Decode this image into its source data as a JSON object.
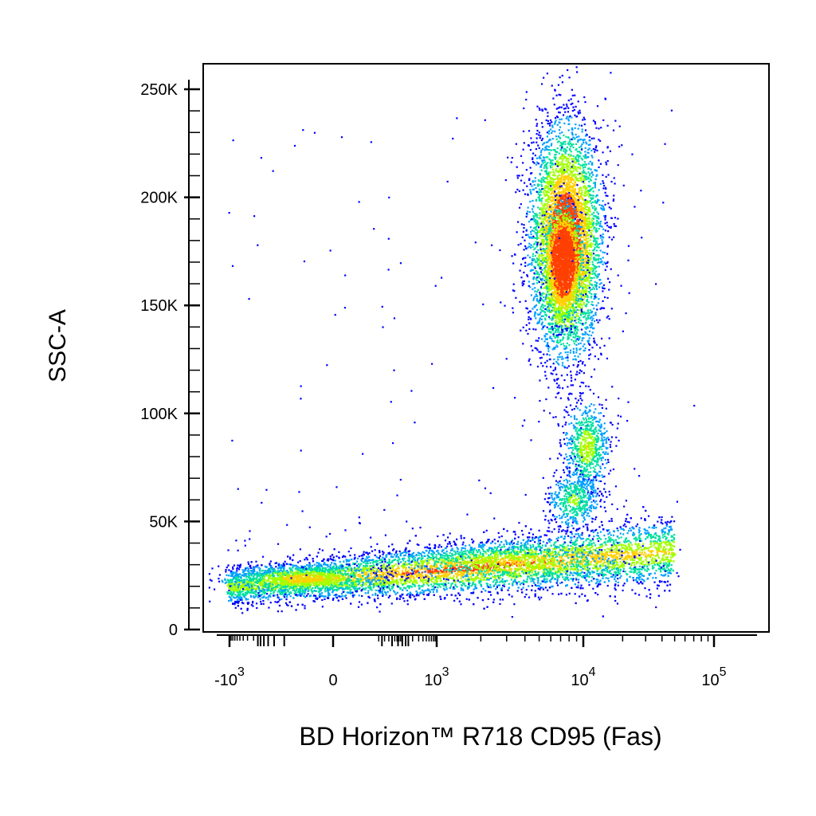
{
  "chart_data": {
    "type": "scatter",
    "subtype": "flow-cytometry-density-dot-plot",
    "xlabel": "BD Horizon™ R718 CD95 (Fas)",
    "ylabel": "SSC-A",
    "x_scale": "biexponential",
    "y_scale": "linear",
    "xlim": [
      -1500,
      150000
    ],
    "ylim": [
      0,
      262144
    ],
    "y_ticks": [
      {
        "value": 0,
        "label": "0"
      },
      {
        "value": 50000,
        "label": "50K"
      },
      {
        "value": 100000,
        "label": "100K"
      },
      {
        "value": 150000,
        "label": "150K"
      },
      {
        "value": 200000,
        "label": "200K"
      },
      {
        "value": 250000,
        "label": "250K"
      }
    ],
    "x_ticks": [
      {
        "value": -1000,
        "base": "-10",
        "exp": "3"
      },
      {
        "value": 0,
        "base": "0",
        "exp": ""
      },
      {
        "value": 1000,
        "base": "10",
        "exp": "3"
      },
      {
        "value": 10000,
        "base": "10",
        "exp": "4"
      },
      {
        "value": 100000,
        "base": "10",
        "exp": "5"
      }
    ],
    "density_colors": [
      "#0000ff",
      "#00a0ff",
      "#00e0a0",
      "#a0ff00",
      "#ffd000",
      "#ff4000"
    ],
    "populations": [
      {
        "x_center": 7000,
        "x_range": [
          3000,
          16000
        ],
        "y_center": 180000,
        "y_range": [
          125000,
          240000
        ],
        "relative_size": 0.42
      },
      {
        "x_center": 200,
        "x_range": [
          -1300,
          30000
        ],
        "y_center": 28000,
        "y_range": [
          12000,
          65000
        ],
        "relative_size": 0.5
      },
      {
        "x_center": 9500,
        "x_range": [
          6000,
          18000
        ],
        "y_center": 85000,
        "y_range": [
          55000,
          120000
        ],
        "relative_size": 0.05
      }
    ],
    "grid": false,
    "legend": "none"
  }
}
